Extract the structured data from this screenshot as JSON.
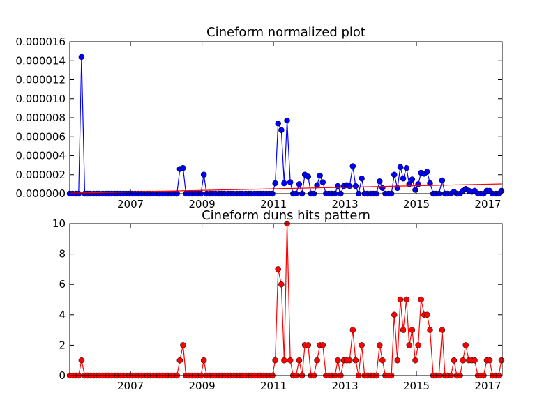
{
  "figure_background": "#ffffff",
  "chart_data": [
    {
      "type": "line",
      "title": "Cineform normalized plot",
      "xlabel": "",
      "ylabel": "",
      "xlim": [
        2005.3,
        2017.4
      ],
      "ylim": [
        0,
        1.6e-05
      ],
      "yticks": [
        "0.000000",
        "0.000002",
        "0.000004",
        "0.000006",
        "0.000008",
        "0.000010",
        "0.000012",
        "0.000014",
        "0.000016"
      ],
      "xticks": [
        "2007",
        "2009",
        "2011",
        "2013",
        "2015",
        "2017"
      ],
      "grid": false,
      "series": [
        {
          "color": "#0000ff",
          "marker": "circle",
          "x": [
            2005.3,
            2005.38,
            2005.47,
            2005.55,
            2005.63,
            2005.72,
            2005.8,
            2005.88,
            2005.97,
            2006.05,
            2006.13,
            2006.22,
            2006.3,
            2006.38,
            2006.47,
            2006.55,
            2006.63,
            2006.72,
            2006.8,
            2006.88,
            2006.97,
            2007.05,
            2007.13,
            2007.22,
            2007.3,
            2007.38,
            2007.47,
            2007.55,
            2007.63,
            2007.72,
            2007.8,
            2007.88,
            2007.97,
            2008.05,
            2008.13,
            2008.22,
            2008.3,
            2008.38,
            2008.47,
            2008.55,
            2008.63,
            2008.72,
            2008.8,
            2008.88,
            2008.97,
            2009.05,
            2009.13,
            2009.22,
            2009.3,
            2009.38,
            2009.47,
            2009.55,
            2009.63,
            2009.72,
            2009.8,
            2009.88,
            2009.97,
            2010.05,
            2010.13,
            2010.22,
            2010.3,
            2010.38,
            2010.47,
            2010.55,
            2010.63,
            2010.72,
            2010.8,
            2010.88,
            2010.97,
            2011.05,
            2011.13,
            2011.22,
            2011.3,
            2011.38,
            2011.47,
            2011.55,
            2011.63,
            2011.72,
            2011.8,
            2011.88,
            2011.97,
            2012.05,
            2012.13,
            2012.22,
            2012.3,
            2012.38,
            2012.47,
            2012.55,
            2012.63,
            2012.72,
            2012.8,
            2012.88,
            2012.97,
            2013.05,
            2013.13,
            2013.22,
            2013.3,
            2013.38,
            2013.47,
            2013.55,
            2013.63,
            2013.72,
            2013.8,
            2013.88,
            2013.97,
            2014.05,
            2014.13,
            2014.22,
            2014.3,
            2014.38,
            2014.47,
            2014.55,
            2014.63,
            2014.72,
            2014.8,
            2014.88,
            2014.97,
            2015.05,
            2015.13,
            2015.22,
            2015.3,
            2015.38,
            2015.47,
            2015.55,
            2015.63,
            2015.72,
            2015.8,
            2015.88,
            2015.97,
            2016.05,
            2016.13,
            2016.22,
            2016.3,
            2016.38,
            2016.47,
            2016.55,
            2016.63,
            2016.72,
            2016.8,
            2016.88,
            2016.97,
            2017.05,
            2017.13,
            2017.22,
            2017.3,
            2017.38
          ],
          "y": [
            0,
            0,
            0,
            0,
            1.44e-05,
            0,
            0,
            0,
            0,
            0,
            0,
            0,
            0,
            0,
            0,
            0,
            0,
            0,
            0,
            0,
            0,
            0,
            0,
            0,
            0,
            0,
            0,
            0,
            0,
            0,
            0,
            0,
            0,
            0,
            0,
            0,
            0,
            2.6e-06,
            2.7e-06,
            0,
            0,
            0,
            0,
            0,
            0,
            2e-06,
            0,
            0,
            0,
            0,
            0,
            0,
            0,
            0,
            0,
            0,
            0,
            0,
            0,
            0,
            0,
            0,
            0,
            0,
            0,
            0,
            0,
            0,
            0,
            1.1e-06,
            7.4e-06,
            6.7e-06,
            1.1e-06,
            7.7e-06,
            1.2e-06,
            0,
            0,
            1e-06,
            0,
            2e-06,
            1.8e-06,
            0,
            0,
            9e-07,
            1.9e-06,
            1.2e-06,
            0,
            0,
            0,
            0,
            8e-07,
            0,
            8e-07,
            9e-07,
            8e-07,
            2.9e-06,
            8e-07,
            0,
            1.6e-06,
            0,
            0,
            0,
            0,
            0,
            1.3e-06,
            6e-07,
            0,
            0,
            0,
            2e-06,
            6e-07,
            2.8e-06,
            1.6e-06,
            2.7e-06,
            1e-06,
            1.5e-06,
            4e-07,
            1e-06,
            2.2e-06,
            2.1e-06,
            2.3e-06,
            1.1e-06,
            0,
            0,
            0,
            1.4e-06,
            0,
            0,
            0,
            2e-07,
            0,
            0,
            3e-07,
            5e-07,
            3e-07,
            2e-07,
            3e-07,
            0,
            0,
            0,
            3e-07,
            3e-07,
            0,
            0,
            0,
            3e-07
          ]
        },
        {
          "color": "#ff0000",
          "marker": "none",
          "x": [
            2005.3,
            2017.4
          ],
          "y": [
            5e-08,
            1.03e-06
          ]
        }
      ]
    },
    {
      "type": "line",
      "title": "Cineform duns hits pattern",
      "xlabel": "",
      "ylabel": "",
      "xlim": [
        2005.3,
        2017.4
      ],
      "ylim": [
        0,
        10
      ],
      "yticks": [
        "0",
        "2",
        "4",
        "6",
        "8",
        "10"
      ],
      "xticks": [
        "2007",
        "2009",
        "2011",
        "2013",
        "2015",
        "2017"
      ],
      "grid": false,
      "series": [
        {
          "color": "#ff0000",
          "marker": "circle",
          "x": [
            2005.3,
            2005.38,
            2005.47,
            2005.55,
            2005.63,
            2005.72,
            2005.8,
            2005.88,
            2005.97,
            2006.05,
            2006.13,
            2006.22,
            2006.3,
            2006.38,
            2006.47,
            2006.55,
            2006.63,
            2006.72,
            2006.8,
            2006.88,
            2006.97,
            2007.05,
            2007.13,
            2007.22,
            2007.3,
            2007.38,
            2007.47,
            2007.55,
            2007.63,
            2007.72,
            2007.8,
            2007.88,
            2007.97,
            2008.05,
            2008.13,
            2008.22,
            2008.3,
            2008.38,
            2008.47,
            2008.55,
            2008.63,
            2008.72,
            2008.8,
            2008.88,
            2008.97,
            2009.05,
            2009.13,
            2009.22,
            2009.3,
            2009.38,
            2009.47,
            2009.55,
            2009.63,
            2009.72,
            2009.8,
            2009.88,
            2009.97,
            2010.05,
            2010.13,
            2010.22,
            2010.3,
            2010.38,
            2010.47,
            2010.55,
            2010.63,
            2010.72,
            2010.8,
            2010.88,
            2010.97,
            2011.05,
            2011.13,
            2011.22,
            2011.3,
            2011.38,
            2011.47,
            2011.55,
            2011.63,
            2011.72,
            2011.8,
            2011.88,
            2011.97,
            2012.05,
            2012.13,
            2012.22,
            2012.3,
            2012.38,
            2012.47,
            2012.55,
            2012.63,
            2012.72,
            2012.8,
            2012.88,
            2012.97,
            2013.05,
            2013.13,
            2013.22,
            2013.3,
            2013.38,
            2013.47,
            2013.55,
            2013.63,
            2013.72,
            2013.8,
            2013.88,
            2013.97,
            2014.05,
            2014.13,
            2014.22,
            2014.3,
            2014.38,
            2014.47,
            2014.55,
            2014.63,
            2014.72,
            2014.8,
            2014.88,
            2014.97,
            2015.05,
            2015.13,
            2015.22,
            2015.3,
            2015.38,
            2015.47,
            2015.55,
            2015.63,
            2015.72,
            2015.8,
            2015.88,
            2015.97,
            2016.05,
            2016.13,
            2016.22,
            2016.3,
            2016.38,
            2016.47,
            2016.55,
            2016.63,
            2016.72,
            2016.8,
            2016.88,
            2016.97,
            2017.05,
            2017.13,
            2017.22,
            2017.3,
            2017.38
          ],
          "y": [
            0,
            0,
            0,
            0,
            1,
            0,
            0,
            0,
            0,
            0,
            0,
            0,
            0,
            0,
            0,
            0,
            0,
            0,
            0,
            0,
            0,
            0,
            0,
            0,
            0,
            0,
            0,
            0,
            0,
            0,
            0,
            0,
            0,
            0,
            0,
            0,
            0,
            1,
            2,
            0,
            0,
            0,
            0,
            0,
            0,
            1,
            0,
            0,
            0,
            0,
            0,
            0,
            0,
            0,
            0,
            0,
            0,
            0,
            0,
            0,
            0,
            0,
            0,
            0,
            0,
            0,
            0,
            0,
            0,
            1,
            7,
            6,
            1,
            10,
            1,
            0,
            0,
            1,
            0,
            2,
            2,
            0,
            0,
            1,
            2,
            2,
            0,
            0,
            0,
            0,
            1,
            0,
            1,
            1,
            1,
            3,
            1,
            0,
            2,
            0,
            0,
            0,
            0,
            0,
            2,
            1,
            0,
            0,
            0,
            4,
            1,
            5,
            3,
            5,
            2,
            3,
            1,
            2,
            5,
            4,
            4,
            3,
            0,
            0,
            0,
            3,
            0,
            0,
            0,
            1,
            0,
            0,
            1,
            2,
            1,
            1,
            1,
            0,
            0,
            0,
            1,
            1,
            0,
            0,
            0,
            1
          ]
        }
      ]
    }
  ]
}
